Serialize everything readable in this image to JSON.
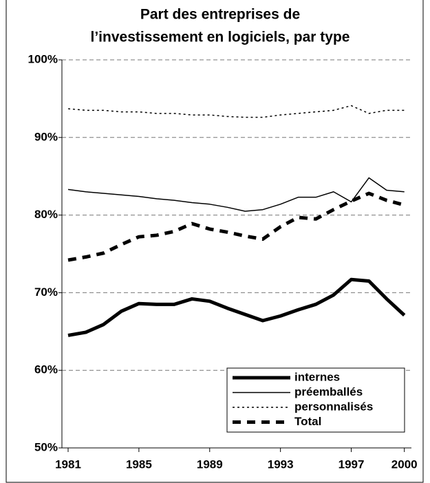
{
  "chart_data": {
    "type": "line",
    "title": [
      "Part des entreprises de",
      "l’investissement en logiciels, par type"
    ],
    "x": [
      1981,
      1982,
      1983,
      1984,
      1985,
      1986,
      1987,
      1988,
      1989,
      1990,
      1991,
      1992,
      1993,
      1994,
      1995,
      1996,
      1997,
      1998,
      1999,
      2000
    ],
    "xlim": [
      1980.65,
      2000.4
    ],
    "xticks": [
      1981,
      1985,
      1989,
      1993,
      1997,
      2000
    ],
    "ylim": [
      50,
      100
    ],
    "yticks": [
      {
        "value": 50,
        "label": "50%"
      },
      {
        "value": 60,
        "label": "60%"
      },
      {
        "value": 70,
        "label": "70%"
      },
      {
        "value": 80,
        "label": "80%"
      },
      {
        "value": 90,
        "label": "90%"
      },
      {
        "value": 100,
        "label": "100%"
      }
    ],
    "grid": true,
    "legend": "lower right",
    "series": [
      {
        "name": "internes",
        "color": "#000000",
        "values": [
          64.5,
          64.9,
          65.9,
          67.6,
          68.6,
          68.5,
          68.5,
          69.2,
          68.9,
          68.0,
          67.2,
          66.4,
          67.0,
          67.8,
          68.5,
          69.7,
          71.7,
          71.5,
          69.2,
          67.1
        ]
      },
      {
        "name": "préemballés",
        "color": "#000000",
        "values": [
          83.3,
          83.0,
          82.8,
          82.6,
          82.4,
          82.1,
          81.9,
          81.6,
          81.4,
          81.0,
          80.5,
          80.7,
          81.4,
          82.3,
          82.3,
          83.0,
          81.7,
          84.8,
          83.2,
          83.0
        ]
      },
      {
        "name": "personnalisés",
        "color": "#000000",
        "values": [
          93.7,
          93.5,
          93.5,
          93.3,
          93.3,
          93.1,
          93.1,
          92.9,
          92.9,
          92.7,
          92.6,
          92.6,
          92.9,
          93.1,
          93.3,
          93.5,
          94.1,
          93.1,
          93.5,
          93.5
        ]
      },
      {
        "name": "Total",
        "color": "#000000",
        "values": [
          74.2,
          74.6,
          75.1,
          76.2,
          77.2,
          77.4,
          77.9,
          78.9,
          78.2,
          77.8,
          77.3,
          76.9,
          78.5,
          79.7,
          79.5,
          80.7,
          81.8,
          82.8,
          81.9,
          81.3
        ]
      }
    ]
  }
}
